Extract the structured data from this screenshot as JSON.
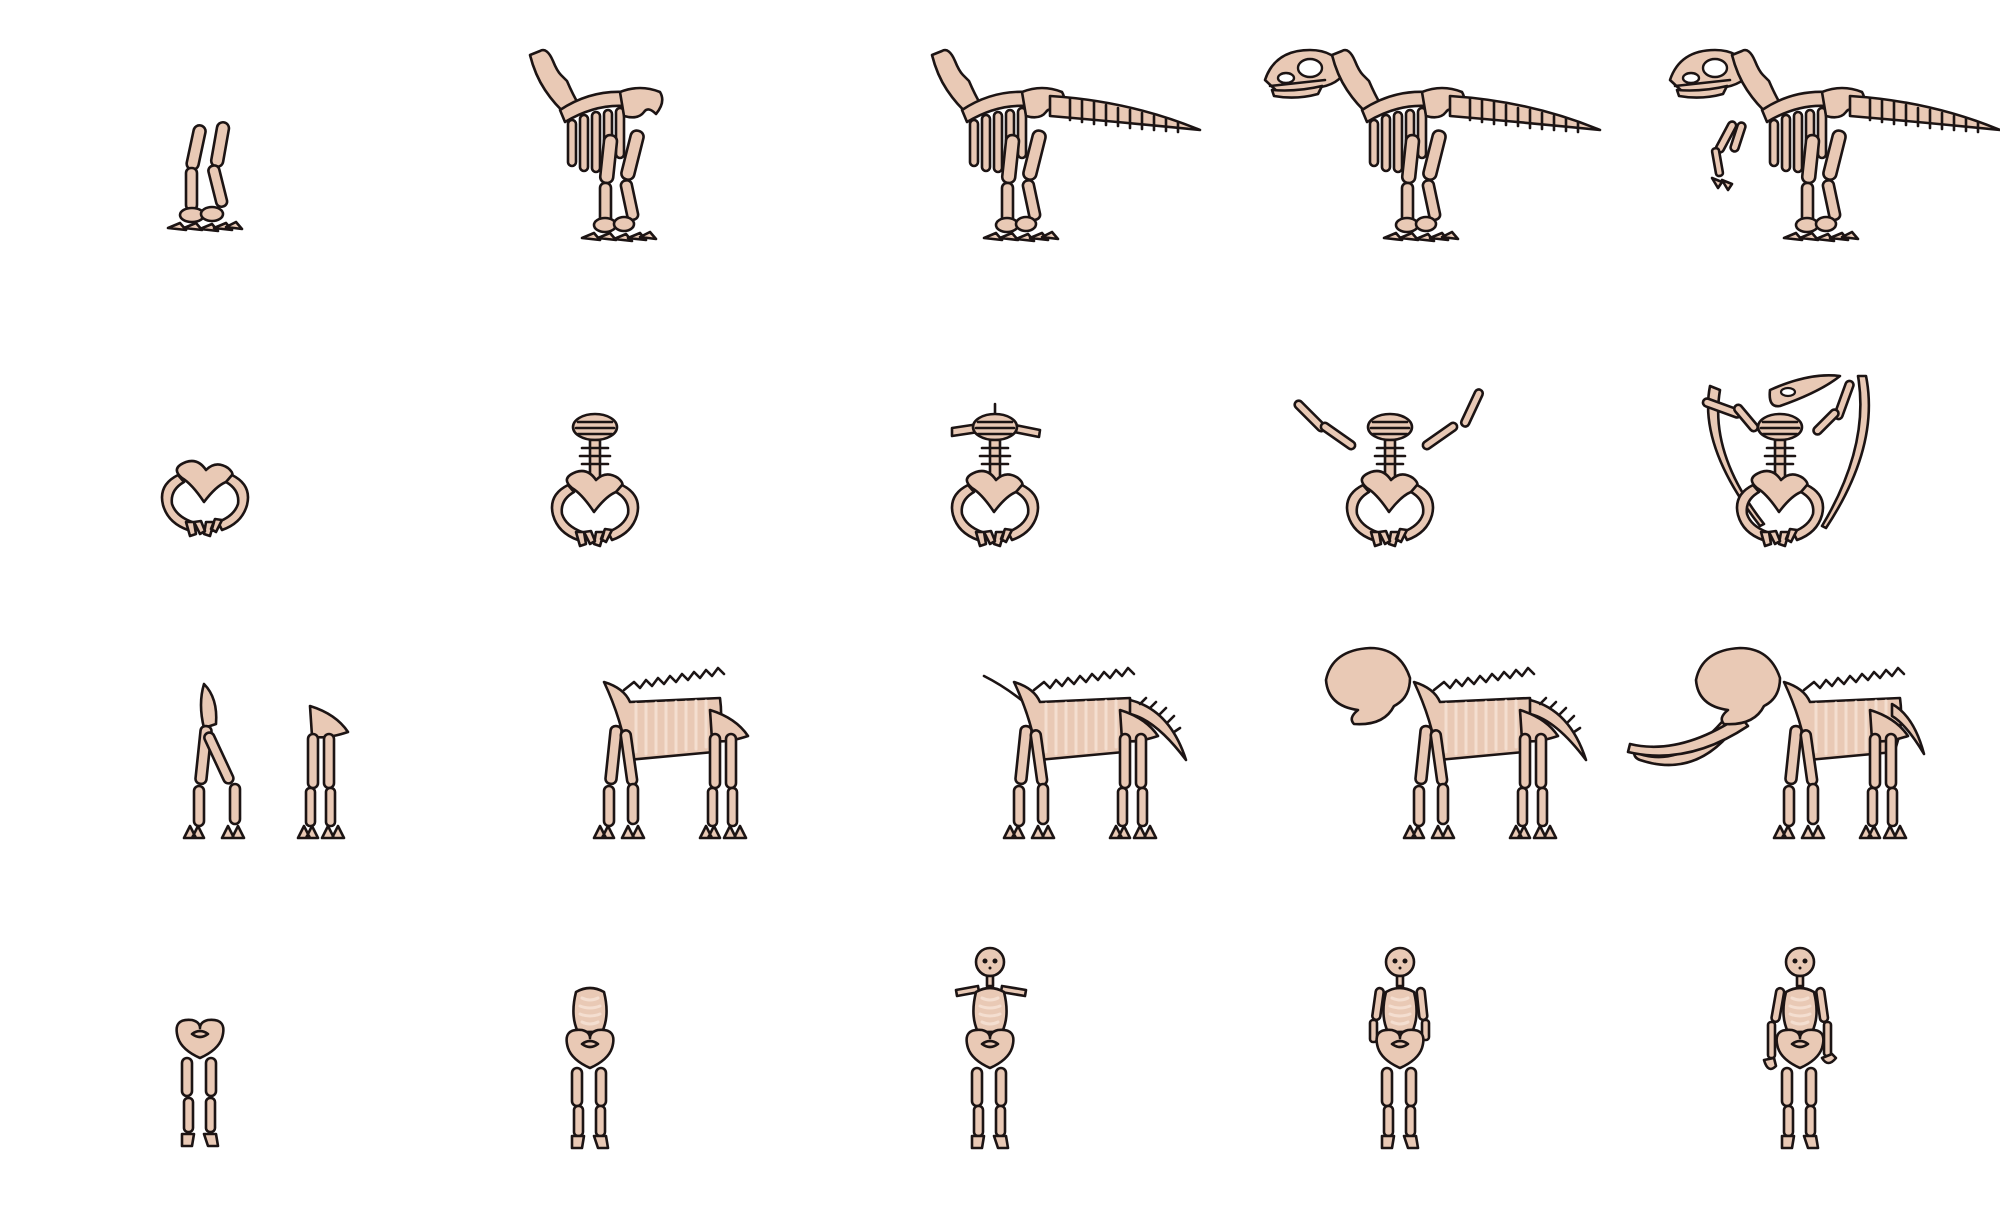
{
  "colors": {
    "bone": "#e9c9b5",
    "outline": "#1c1414",
    "rib_light": "#f4ded0",
    "background": "#ffffff"
  },
  "rows": [
    {
      "creature": "theropod-dinosaur",
      "stages": [
        1,
        2,
        3,
        4,
        5
      ]
    },
    {
      "creature": "pterosaur",
      "stages": [
        1,
        2,
        3,
        4,
        5
      ]
    },
    {
      "creature": "mammoth",
      "stages": [
        1,
        2,
        3,
        4,
        5
      ]
    },
    {
      "creature": "human",
      "stages": [
        1,
        2,
        3,
        4,
        5
      ]
    }
  ]
}
